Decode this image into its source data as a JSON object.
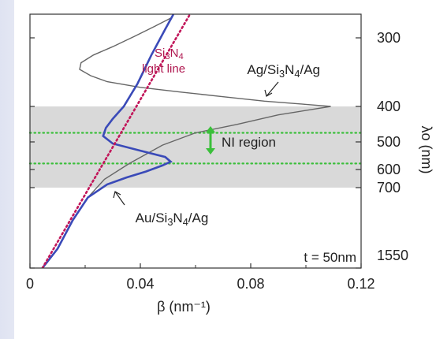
{
  "chart_data": {
    "type": "line",
    "title": "",
    "xlabel": "β (nm⁻¹)",
    "ylabel": "λo (nm)",
    "xlim": [
      0,
      0.12
    ],
    "x_ticks": [
      "0",
      "0.04",
      "0.08",
      "0.12"
    ],
    "y_ticks": [
      "300",
      "400",
      "500",
      "600",
      "700",
      "1550"
    ],
    "y_scale": "reciprocal (photon energy)",
    "shaded_band": {
      "from": 400,
      "to": 700,
      "color": "#d9d9d9"
    },
    "ni_lines": [
      470,
      575
    ],
    "series": [
      {
        "name": "Ag/Si3N4/Ag",
        "color": "#666666",
        "points": [
          [
            0.0045,
            1550
          ],
          [
            0.01,
            1200
          ],
          [
            0.0155,
            900
          ],
          [
            0.021,
            750
          ],
          [
            0.027,
            650
          ],
          [
            0.036,
            575
          ],
          [
            0.048,
            510
          ],
          [
            0.06,
            470
          ],
          [
            0.075,
            445
          ],
          [
            0.09,
            420
          ],
          [
            0.104,
            405
          ],
          [
            0.109,
            400
          ],
          [
            0.1,
            396
          ],
          [
            0.085,
            390
          ],
          [
            0.07,
            382
          ],
          [
            0.055,
            374
          ],
          [
            0.04,
            366
          ],
          [
            0.028,
            357
          ],
          [
            0.022,
            348
          ],
          [
            0.018,
            339
          ],
          [
            0.0185,
            330
          ],
          [
            0.023,
            320
          ],
          [
            0.03,
            310
          ],
          [
            0.038,
            298
          ],
          [
            0.045,
            287
          ],
          [
            0.051,
            278
          ]
        ]
      },
      {
        "name": "Au/Si3N4/Ag",
        "color": "#3a4ab8",
        "points": [
          [
            0.0045,
            1550
          ],
          [
            0.01,
            1200
          ],
          [
            0.0155,
            900
          ],
          [
            0.021,
            750
          ],
          [
            0.028,
            680
          ],
          [
            0.035,
            640
          ],
          [
            0.042,
            610
          ],
          [
            0.048,
            583
          ],
          [
            0.051,
            568
          ],
          [
            0.049,
            550
          ],
          [
            0.04,
            528
          ],
          [
            0.03,
            505
          ],
          [
            0.0265,
            480
          ],
          [
            0.0275,
            455
          ],
          [
            0.03,
            430
          ],
          [
            0.034,
            400
          ],
          [
            0.039,
            360
          ],
          [
            0.044,
            320
          ],
          [
            0.049,
            290
          ],
          [
            0.052,
            274
          ]
        ]
      },
      {
        "name": "Si3N4 light line",
        "color": "#c2185b",
        "points": [
          [
            0.0045,
            1550
          ],
          [
            0.058,
            274
          ]
        ]
      }
    ],
    "annotations": {
      "ag_label": "Ag/Si3N4/Ag",
      "au_label": "Au/Si3N4/Ag",
      "light_line_1": "Si3N4",
      "light_line_2": "light line",
      "ni_region": "NI region",
      "thickness": "t = 50nm"
    }
  }
}
